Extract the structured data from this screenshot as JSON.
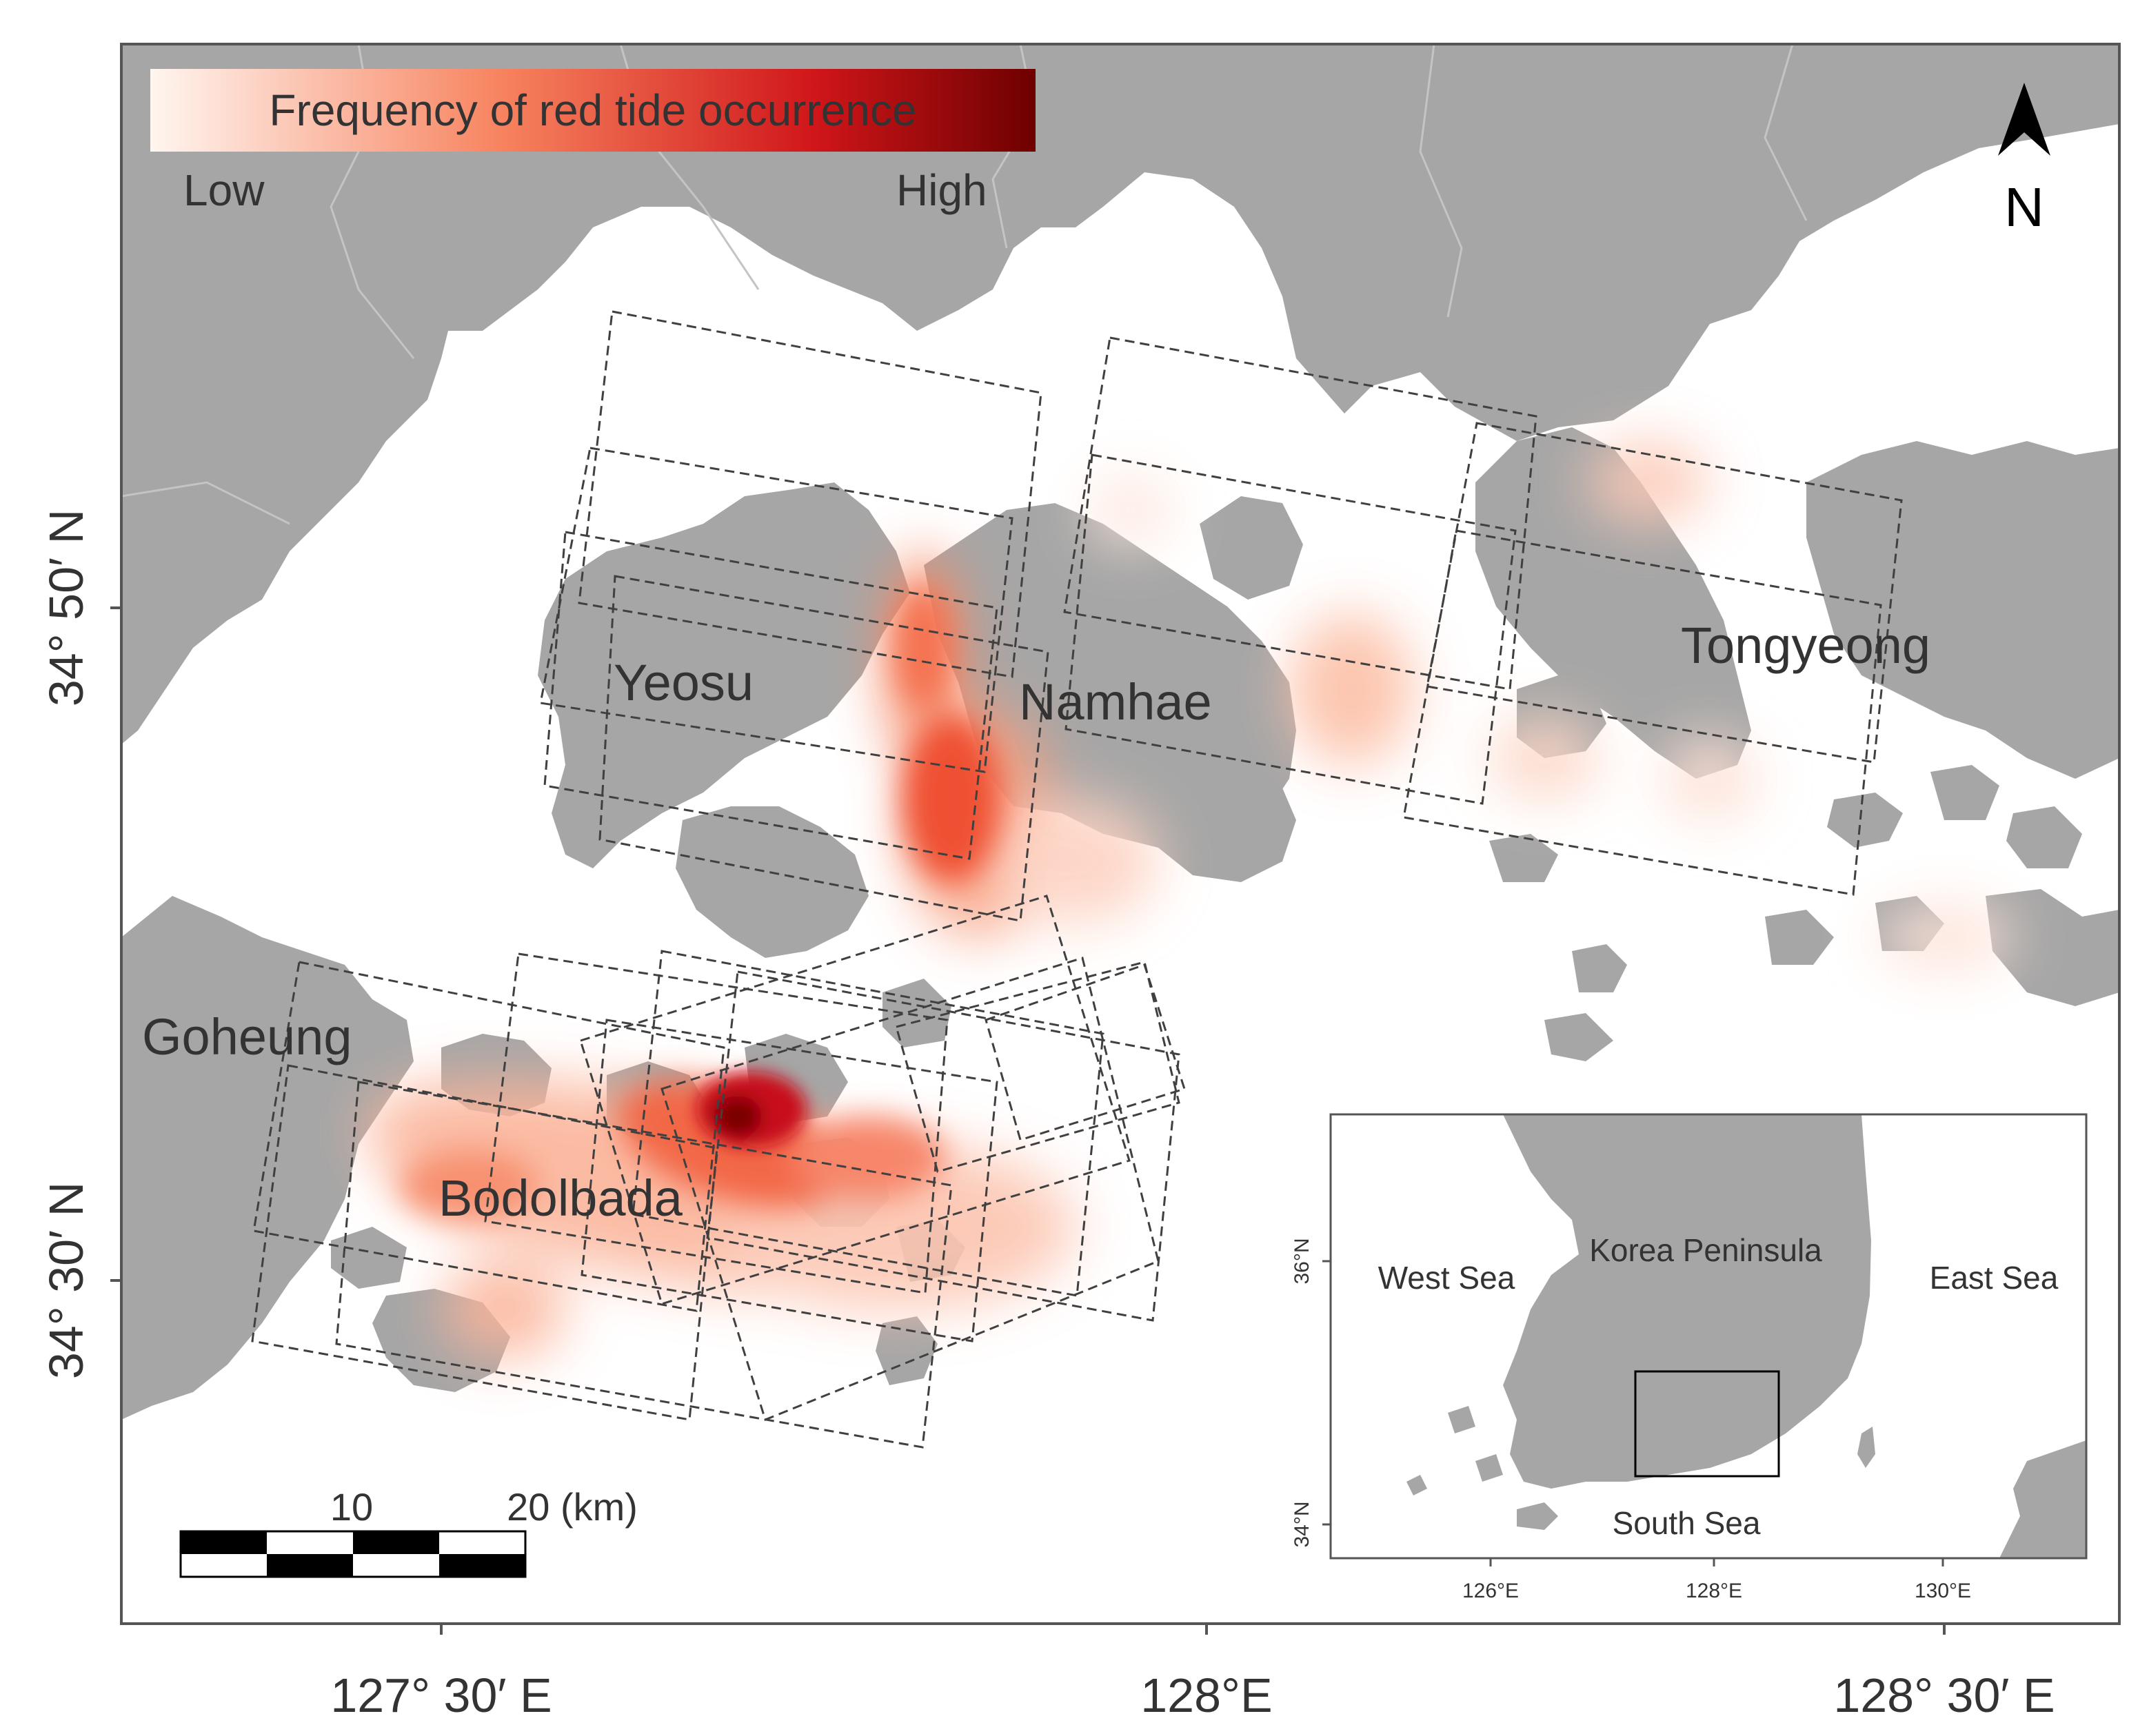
{
  "legend": {
    "title": "Frequency of red tide occurrence",
    "low": "Low",
    "high": "High"
  },
  "north_arrow": {
    "label": "N"
  },
  "places": {
    "yeosu": "Yeosu",
    "namhae": "Namhae",
    "tongyeong": "Tongyeong",
    "goheung": "Goheung",
    "bodolbada": "Bodolbada"
  },
  "axes": {
    "y_ticks": [
      "34° 50′ N",
      "34° 30′ N"
    ],
    "x_ticks": [
      "127° 30′ E",
      "128°E",
      "128° 30′ E"
    ]
  },
  "scale_bar": {
    "labels": [
      "10",
      "20 (km)"
    ]
  },
  "inset": {
    "labels": {
      "korea": "Korea Peninsula",
      "west": "West Sea",
      "east": "East Sea",
      "south": "South Sea"
    },
    "y_ticks": [
      "36°N",
      "34°N"
    ],
    "x_ticks": [
      "126°E",
      "128°E",
      "130°E"
    ]
  },
  "colors": {
    "land": "#a6a6a6",
    "sea": "#ffffff",
    "low": "#fff3ec",
    "mid": "#f25c3c",
    "high": "#6e0000",
    "frame": "#555555",
    "footprint": "#404040"
  }
}
